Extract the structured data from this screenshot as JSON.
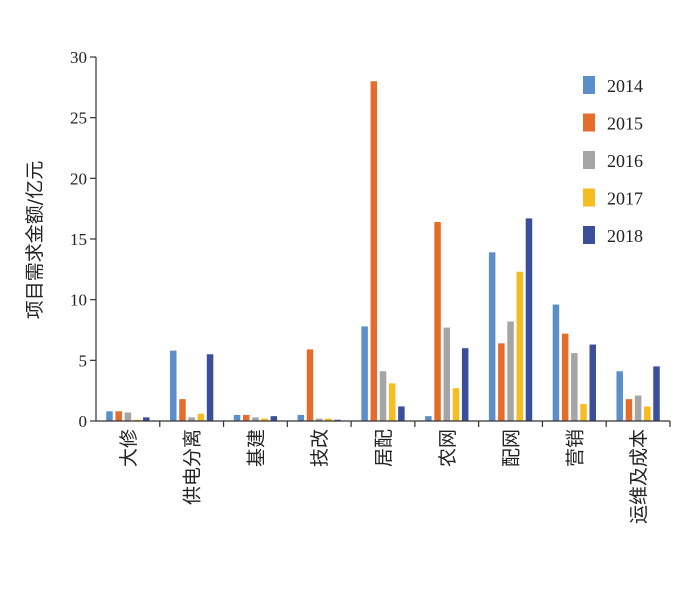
{
  "chart_data": {
    "type": "bar",
    "title": "",
    "xlabel": "",
    "ylabel": "项目需求金额/亿元",
    "ylim": [
      0,
      30
    ],
    "yticks": [
      0,
      5,
      10,
      15,
      20,
      25,
      30
    ],
    "grid": false,
    "legend_position": "right",
    "categories": [
      "大修",
      "供电分离",
      "基建",
      "技改",
      "居配",
      "农网",
      "配网",
      "营销",
      "运维及成本"
    ],
    "series": [
      {
        "name": "2014",
        "color": "#5b8fc9",
        "values": [
          0.8,
          5.8,
          0.5,
          0.5,
          7.8,
          0.4,
          13.9,
          9.6,
          4.1
        ]
      },
      {
        "name": "2015",
        "color": "#e46c2c",
        "values": [
          0.8,
          1.8,
          0.5,
          5.9,
          28.0,
          16.4,
          6.4,
          7.2,
          1.8
        ]
      },
      {
        "name": "2016",
        "color": "#a5a5a5",
        "values": [
          0.7,
          0.3,
          0.3,
          0.2,
          4.1,
          7.7,
          8.2,
          5.6,
          2.1
        ]
      },
      {
        "name": "2017",
        "color": "#f5bd1f",
        "values": [
          0.1,
          0.6,
          0.2,
          0.2,
          3.1,
          2.7,
          12.3,
          1.4,
          1.2
        ]
      },
      {
        "name": "2018",
        "color": "#3b4e9b",
        "values": [
          0.3,
          5.5,
          0.4,
          0.1,
          1.2,
          6.0,
          16.7,
          6.3,
          4.5
        ]
      }
    ]
  }
}
